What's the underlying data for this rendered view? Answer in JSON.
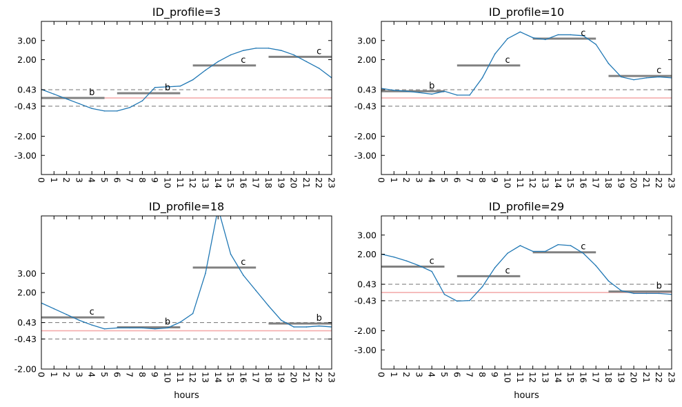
{
  "figure": {
    "colors": {
      "series_line": "#1f77b4",
      "segment_line": "#808080",
      "threshold_dashed": "#808080",
      "zero_line": "#f4a6a6",
      "axes": "#000000"
    }
  },
  "chart_data": [
    {
      "type": "line",
      "title": "ID_profile=3",
      "xlabel": "",
      "ylabel": "",
      "x": [
        0,
        1,
        2,
        3,
        4,
        5,
        6,
        7,
        8,
        9,
        10,
        11,
        12,
        13,
        14,
        15,
        16,
        17,
        18,
        19,
        20,
        21,
        22,
        23
      ],
      "x_ticks": [
        "0",
        "1",
        "2",
        "3",
        "4",
        "5",
        "6",
        "7",
        "8",
        "9",
        "10",
        "11",
        "12",
        "13",
        "14",
        "15",
        "16",
        "17",
        "18",
        "19",
        "20",
        "21",
        "22",
        "23"
      ],
      "ylim": [
        -4.0,
        4.0
      ],
      "y_ticks": [
        "3.00",
        "2.00",
        "0.43",
        "-0.43",
        "-2.00",
        "-3.00"
      ],
      "y_tick_values": [
        3.0,
        2.0,
        0.43,
        -0.43,
        -2.0,
        -3.0
      ],
      "dashed_lines": [
        0.43,
        -0.43
      ],
      "zero_line": 0.0,
      "series": [
        {
          "values": [
            0.45,
            0.2,
            -0.05,
            -0.3,
            -0.55,
            -0.68,
            -0.68,
            -0.5,
            -0.15,
            0.55,
            0.58,
            0.62,
            0.95,
            1.45,
            1.9,
            2.25,
            2.48,
            2.6,
            2.6,
            2.48,
            2.25,
            1.9,
            1.55,
            1.05
          ]
        }
      ],
      "segments": [
        {
          "start": 0,
          "end": 5,
          "value": 0.0,
          "label": "b"
        },
        {
          "start": 6,
          "end": 11,
          "value": 0.25,
          "label": "b"
        },
        {
          "start": 12,
          "end": 17,
          "value": 1.7,
          "label": "c"
        },
        {
          "start": 18,
          "end": 23,
          "value": 2.15,
          "label": "c"
        }
      ]
    },
    {
      "type": "line",
      "title": "ID_profile=10",
      "xlabel": "",
      "ylabel": "",
      "x": [
        0,
        1,
        2,
        3,
        4,
        5,
        6,
        7,
        8,
        9,
        10,
        11,
        12,
        13,
        14,
        15,
        16,
        17,
        18,
        19,
        20,
        21,
        22,
        23
      ],
      "x_ticks": [
        "0",
        "1",
        "2",
        "3",
        "4",
        "5",
        "6",
        "7",
        "8",
        "9",
        "10",
        "11",
        "12",
        "13",
        "14",
        "15",
        "16",
        "17",
        "18",
        "19",
        "20",
        "21",
        "22",
        "23"
      ],
      "ylim": [
        -4.0,
        4.0
      ],
      "y_ticks": [
        "3.00",
        "2.00",
        "0.43",
        "-0.43",
        "-2.00",
        "-3.00"
      ],
      "y_tick_values": [
        3.0,
        2.0,
        0.43,
        -0.43,
        -2.0,
        -3.0
      ],
      "dashed_lines": [
        0.43,
        -0.43
      ],
      "zero_line": 0.0,
      "series": [
        {
          "values": [
            0.5,
            0.4,
            0.35,
            0.28,
            0.2,
            0.35,
            0.15,
            0.15,
            1.05,
            2.3,
            3.1,
            3.45,
            3.15,
            3.05,
            3.3,
            3.3,
            3.25,
            2.8,
            1.8,
            1.1,
            0.95,
            1.05,
            1.1,
            1.05
          ]
        }
      ],
      "segments": [
        {
          "start": 0,
          "end": 5,
          "value": 0.35,
          "label": "b"
        },
        {
          "start": 6,
          "end": 11,
          "value": 1.7,
          "label": "c"
        },
        {
          "start": 12,
          "end": 17,
          "value": 3.1,
          "label": "c"
        },
        {
          "start": 18,
          "end": 23,
          "value": 1.15,
          "label": "c"
        }
      ]
    },
    {
      "type": "line",
      "title": "ID_profile=18",
      "xlabel": "hours",
      "ylabel": "",
      "x": [
        0,
        1,
        2,
        3,
        4,
        5,
        6,
        7,
        8,
        9,
        10,
        11,
        12,
        13,
        14,
        15,
        16,
        17,
        18,
        19,
        20,
        21,
        22,
        23
      ],
      "x_ticks": [
        "0",
        "1",
        "2",
        "3",
        "4",
        "5",
        "6",
        "7",
        "8",
        "9",
        "10",
        "11",
        "12",
        "13",
        "14",
        "15",
        "16",
        "17",
        "18",
        "19",
        "20",
        "21",
        "22",
        "23"
      ],
      "ylim": [
        -2.0,
        6.0
      ],
      "y_ticks": [
        "3.00",
        "2.00",
        "0.43",
        "-0.43",
        "-2.00"
      ],
      "y_tick_values": [
        3.0,
        2.0,
        0.43,
        -0.43,
        -2.0
      ],
      "dashed_lines": [
        0.43,
        -0.43
      ],
      "zero_line": 0.0,
      "series": [
        {
          "values": [
            1.45,
            1.15,
            0.85,
            0.55,
            0.3,
            0.1,
            0.15,
            0.15,
            0.15,
            0.1,
            0.15,
            0.45,
            0.9,
            3.0,
            6.4,
            4.0,
            2.9,
            2.1,
            1.3,
            0.55,
            0.2,
            0.2,
            0.25,
            0.2
          ]
        }
      ],
      "segments": [
        {
          "start": 0,
          "end": 5,
          "value": 0.7,
          "label": "c"
        },
        {
          "start": 6,
          "end": 11,
          "value": 0.18,
          "label": "b"
        },
        {
          "start": 12,
          "end": 17,
          "value": 3.3,
          "label": "c"
        },
        {
          "start": 18,
          "end": 23,
          "value": 0.38,
          "label": "b"
        }
      ]
    },
    {
      "type": "line",
      "title": "ID_profile=29",
      "xlabel": "hours",
      "ylabel": "",
      "x": [
        0,
        1,
        2,
        3,
        4,
        5,
        6,
        7,
        8,
        9,
        10,
        11,
        12,
        13,
        14,
        15,
        16,
        17,
        18,
        19,
        20,
        21,
        22,
        23
      ],
      "x_ticks": [
        "0",
        "1",
        "2",
        "3",
        "4",
        "5",
        "6",
        "7",
        "8",
        "9",
        "10",
        "11",
        "12",
        "13",
        "14",
        "15",
        "16",
        "17",
        "18",
        "19",
        "20",
        "21",
        "22",
        "23"
      ],
      "ylim": [
        -4.0,
        4.0
      ],
      "y_ticks": [
        "3.00",
        "2.00",
        "0.43",
        "-0.43",
        "-2.00",
        "-3.00"
      ],
      "y_tick_values": [
        3.0,
        2.0,
        0.43,
        -0.43,
        -2.0,
        -3.0
      ],
      "dashed_lines": [
        0.43,
        -0.43
      ],
      "zero_line": 0.0,
      "series": [
        {
          "values": [
            2.0,
            1.85,
            1.65,
            1.4,
            1.1,
            -0.1,
            -0.45,
            -0.42,
            0.3,
            1.3,
            2.05,
            2.45,
            2.15,
            2.15,
            2.5,
            2.45,
            2.05,
            1.4,
            0.6,
            0.1,
            -0.05,
            -0.05,
            -0.05,
            -0.1
          ]
        }
      ],
      "segments": [
        {
          "start": 0,
          "end": 5,
          "value": 1.35,
          "label": "c"
        },
        {
          "start": 6,
          "end": 11,
          "value": 0.85,
          "label": "c"
        },
        {
          "start": 12,
          "end": 17,
          "value": 2.1,
          "label": "c"
        },
        {
          "start": 18,
          "end": 23,
          "value": 0.05,
          "label": "b"
        }
      ]
    }
  ]
}
